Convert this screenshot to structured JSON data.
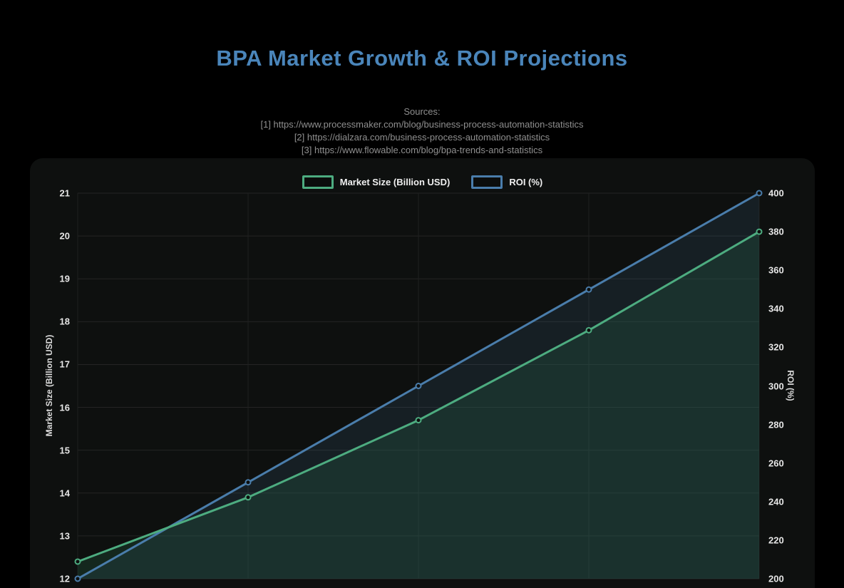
{
  "page": {
    "title": "BPA Market Growth & ROI Projections",
    "sources_heading": "Sources:",
    "sources": [
      "[1] https://www.processmaker.com/blog/business-process-automation-statistics",
      "[2] https://dialzara.com/business-process-automation-statistics",
      "[3] https://www.flowable.com/blog/bpa-trends-and-statistics"
    ]
  },
  "colors": {
    "page_background": "#000000",
    "card_background": "#0e100f",
    "title_accent": "#4a85ba",
    "sources_text": "#8f8f8f",
    "tick_text": "#e6e6e6",
    "grid_line": "#242424",
    "market_size_line": "#4dac80",
    "roi_line": "#4a7dab",
    "market_size_fill": "rgba(35,92,66,0.30)",
    "roi_fill": "rgba(74,125,168,0.14)"
  },
  "chart_data": {
    "type": "line",
    "title": "BPA Market Growth & ROI Projections",
    "x_axis_note": "x tick labels not visible (cut off at bottom edge of screenshot)",
    "num_points": 5,
    "series": [
      {
        "name": "Market Size (Billion USD)",
        "axis": "left",
        "color": "#4dac80",
        "fill": "rgba(35,92,66,0.30)",
        "values": [
          12.4,
          13.9,
          15.7,
          17.8,
          20.1
        ]
      },
      {
        "name": "ROI (%)",
        "axis": "right",
        "color": "#4a7dab",
        "fill": "rgba(74,125,168,0.14)",
        "values": [
          200,
          250,
          300,
          350,
          400
        ]
      }
    ],
    "left_axis": {
      "label": "Market Size (Billion USD)",
      "min": 12,
      "max": 21,
      "ticks": [
        21,
        20,
        19,
        18,
        17,
        16,
        15,
        14,
        13,
        12
      ]
    },
    "right_axis": {
      "label": "ROI (%)",
      "min": 200,
      "max": 400,
      "ticks": [
        400,
        380,
        360,
        340,
        320,
        300,
        280,
        260,
        240,
        220,
        200
      ]
    },
    "legend": [
      "Market Size (Billion USD)",
      "ROI (%)"
    ],
    "legend_position": "top-center",
    "grid": true,
    "area_fill": true,
    "point_style": "open-circle"
  }
}
